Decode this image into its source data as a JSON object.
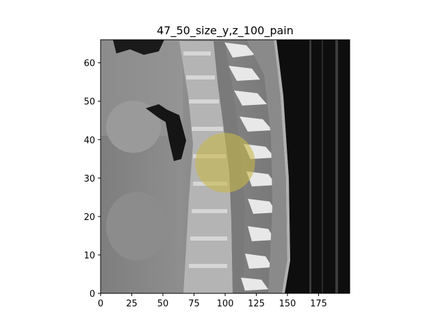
{
  "chart_data": {
    "type": "heatmap",
    "title": "47_50_size_y,z_100_pain",
    "xlabel": "",
    "ylabel": "",
    "xlim": [
      0,
      200
    ],
    "ylim": [
      0,
      66
    ],
    "x_ticks": [
      "0",
      "25",
      "50",
      "75",
      "100",
      "125",
      "150",
      "175"
    ],
    "x_tick_values": [
      0,
      25,
      50,
      75,
      100,
      125,
      150,
      175
    ],
    "y_ticks": [
      "0",
      "10",
      "20",
      "30",
      "40",
      "50",
      "60"
    ],
    "y_tick_values": [
      0,
      10,
      20,
      30,
      40,
      50,
      60
    ],
    "overlay": {
      "shape": "circle",
      "center": [
        100,
        34
      ],
      "radius_x_units": 24,
      "color": "#c8b84a",
      "opacity": 0.6
    },
    "colors": {
      "background_tissue": "#8a8a8a",
      "bone": "#e0e0e0",
      "air": "#111111",
      "overlay": "#c8b84a"
    }
  }
}
